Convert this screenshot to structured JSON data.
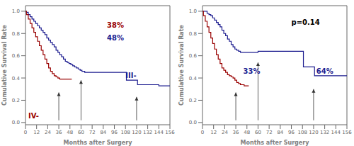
{
  "chart_data": [
    {
      "type": "line",
      "xlabel": "Months after Surgery",
      "ylabel": "Cumulative Survival Rate",
      "xlim": [
        0,
        156
      ],
      "ylim": [
        -0.02,
        1.05
      ],
      "xticks": [
        0,
        12,
        24,
        36,
        48,
        60,
        72,
        84,
        96,
        108,
        120,
        132,
        144,
        156
      ],
      "yticks": [
        {
          "value": 0.0,
          "label": "0.0"
        },
        0.2,
        0.4,
        0.6,
        0.8,
        {
          "value": 1.0,
          "label": "1.0"
        }
      ],
      "grid": false,
      "series": [
        {
          "color": "#1c1c8f",
          "line_style": "steps",
          "x": [
            0,
            1,
            3,
            5,
            7,
            9,
            11,
            13,
            15,
            17,
            19,
            21,
            23,
            25,
            27,
            29,
            31,
            33,
            35,
            37,
            39,
            41,
            43,
            45,
            47,
            49,
            51,
            53,
            55,
            57,
            59,
            61,
            64,
            68,
            72,
            84,
            96,
            108,
            109,
            120,
            121,
            132,
            144,
            156
          ],
          "values": [
            1.0,
            0.99,
            0.97,
            0.95,
            0.93,
            0.91,
            0.89,
            0.87,
            0.85,
            0.83,
            0.81,
            0.79,
            0.76,
            0.74,
            0.72,
            0.7,
            0.68,
            0.65,
            0.63,
            0.61,
            0.59,
            0.57,
            0.55,
            0.54,
            0.53,
            0.52,
            0.51,
            0.5,
            0.49,
            0.48,
            0.47,
            0.46,
            0.45,
            0.45,
            0.45,
            0.45,
            0.45,
            0.45,
            0.38,
            0.38,
            0.34,
            0.34,
            0.33,
            0.33
          ]
        },
        {
          "color": "#990000",
          "line_style": "steps",
          "x": [
            0,
            1,
            3,
            5,
            7,
            9,
            11,
            13,
            15,
            17,
            19,
            21,
            23,
            25,
            27,
            29,
            31,
            33,
            35,
            37,
            39,
            41,
            43,
            45,
            47,
            50
          ],
          "values": [
            1.0,
            0.97,
            0.93,
            0.89,
            0.85,
            0.81,
            0.77,
            0.73,
            0.69,
            0.65,
            0.61,
            0.57,
            0.53,
            0.49,
            0.46,
            0.44,
            0.42,
            0.41,
            0.4,
            0.39,
            0.39,
            0.39,
            0.39,
            0.39,
            0.39,
            0.39
          ]
        }
      ],
      "arrows": [
        {
          "x": 36,
          "y_base": 0.02,
          "y_tip": 0.27
        },
        {
          "x": 60,
          "y_base": 0.02,
          "y_tip": 0.38
        },
        {
          "x": 120,
          "y_base": 0.02,
          "y_tip": 0.23
        }
      ],
      "annotations": [
        {
          "text": "38%",
          "x": 88,
          "y": 0.85,
          "color": "#990000"
        },
        {
          "text": "48%",
          "x": 88,
          "y": 0.74,
          "color": "#1c1c8f"
        },
        {
          "text": "IV-",
          "x": 3,
          "y": 0.04,
          "color": "#990000"
        },
        {
          "text": "III-",
          "x": 108,
          "y": 0.4,
          "color": "#1c1c8f"
        }
      ]
    },
    {
      "type": "line",
      "xlabel": "Months after Surgery",
      "ylabel": "Cumulative Survival Rate",
      "xlim": [
        0,
        156
      ],
      "ylim": [
        -0.02,
        1.05
      ],
      "xticks": [
        0,
        12,
        24,
        36,
        48,
        60,
        72,
        84,
        96,
        108,
        120,
        132,
        144,
        156
      ],
      "yticks": [
        {
          "value": 0.0,
          "label": "0.0"
        },
        0.2,
        0.4,
        0.6,
        0.8,
        {
          "value": 1.0,
          "label": "1.0"
        }
      ],
      "grid": false,
      "series": [
        {
          "color": "#1c1c8f",
          "line_style": "steps",
          "x": [
            0,
            1,
            3,
            5,
            7,
            9,
            11,
            13,
            15,
            17,
            19,
            21,
            23,
            25,
            27,
            29,
            31,
            33,
            35,
            37,
            39,
            41,
            43,
            45,
            47,
            49,
            51,
            55,
            60,
            61,
            84,
            96,
            108,
            109,
            120,
            121,
            132,
            144,
            156
          ],
          "values": [
            1.0,
            1.0,
            1.0,
            0.98,
            0.97,
            0.96,
            0.94,
            0.92,
            0.9,
            0.88,
            0.86,
            0.83,
            0.8,
            0.78,
            0.75,
            0.73,
            0.7,
            0.68,
            0.66,
            0.65,
            0.64,
            0.63,
            0.63,
            0.63,
            0.63,
            0.63,
            0.63,
            0.63,
            0.64,
            0.64,
            0.64,
            0.64,
            0.64,
            0.5,
            0.5,
            0.42,
            0.42,
            0.42,
            0.42
          ]
        },
        {
          "color": "#990000",
          "line_style": "steps",
          "x": [
            0,
            1,
            3,
            5,
            7,
            9,
            11,
            13,
            15,
            17,
            19,
            21,
            23,
            25,
            27,
            29,
            31,
            33,
            35,
            37,
            39,
            41,
            43,
            45,
            47,
            50
          ],
          "values": [
            1.0,
            0.96,
            0.91,
            0.86,
            0.81,
            0.76,
            0.71,
            0.66,
            0.61,
            0.57,
            0.53,
            0.49,
            0.47,
            0.45,
            0.43,
            0.42,
            0.41,
            0.4,
            0.38,
            0.36,
            0.35,
            0.34,
            0.34,
            0.33,
            0.33,
            0.33
          ]
        }
      ],
      "arrows": [
        {
          "x": 36,
          "y_base": 0.02,
          "y_tip": 0.27
        },
        {
          "x": 60,
          "y_base": 0.02,
          "y_tip": 0.54
        },
        {
          "x": 120,
          "y_base": 0.02,
          "y_tip": 0.3
        }
      ],
      "annotations": [
        {
          "text": "p=0.14",
          "x": 96,
          "y": 0.88,
          "color": "#000000"
        },
        {
          "text": "33%",
          "x": 44,
          "y": 0.44,
          "color": "#1c1c8f"
        },
        {
          "text": "64%",
          "x": 123,
          "y": 0.44,
          "color": "#1c1c8f"
        }
      ]
    }
  ]
}
